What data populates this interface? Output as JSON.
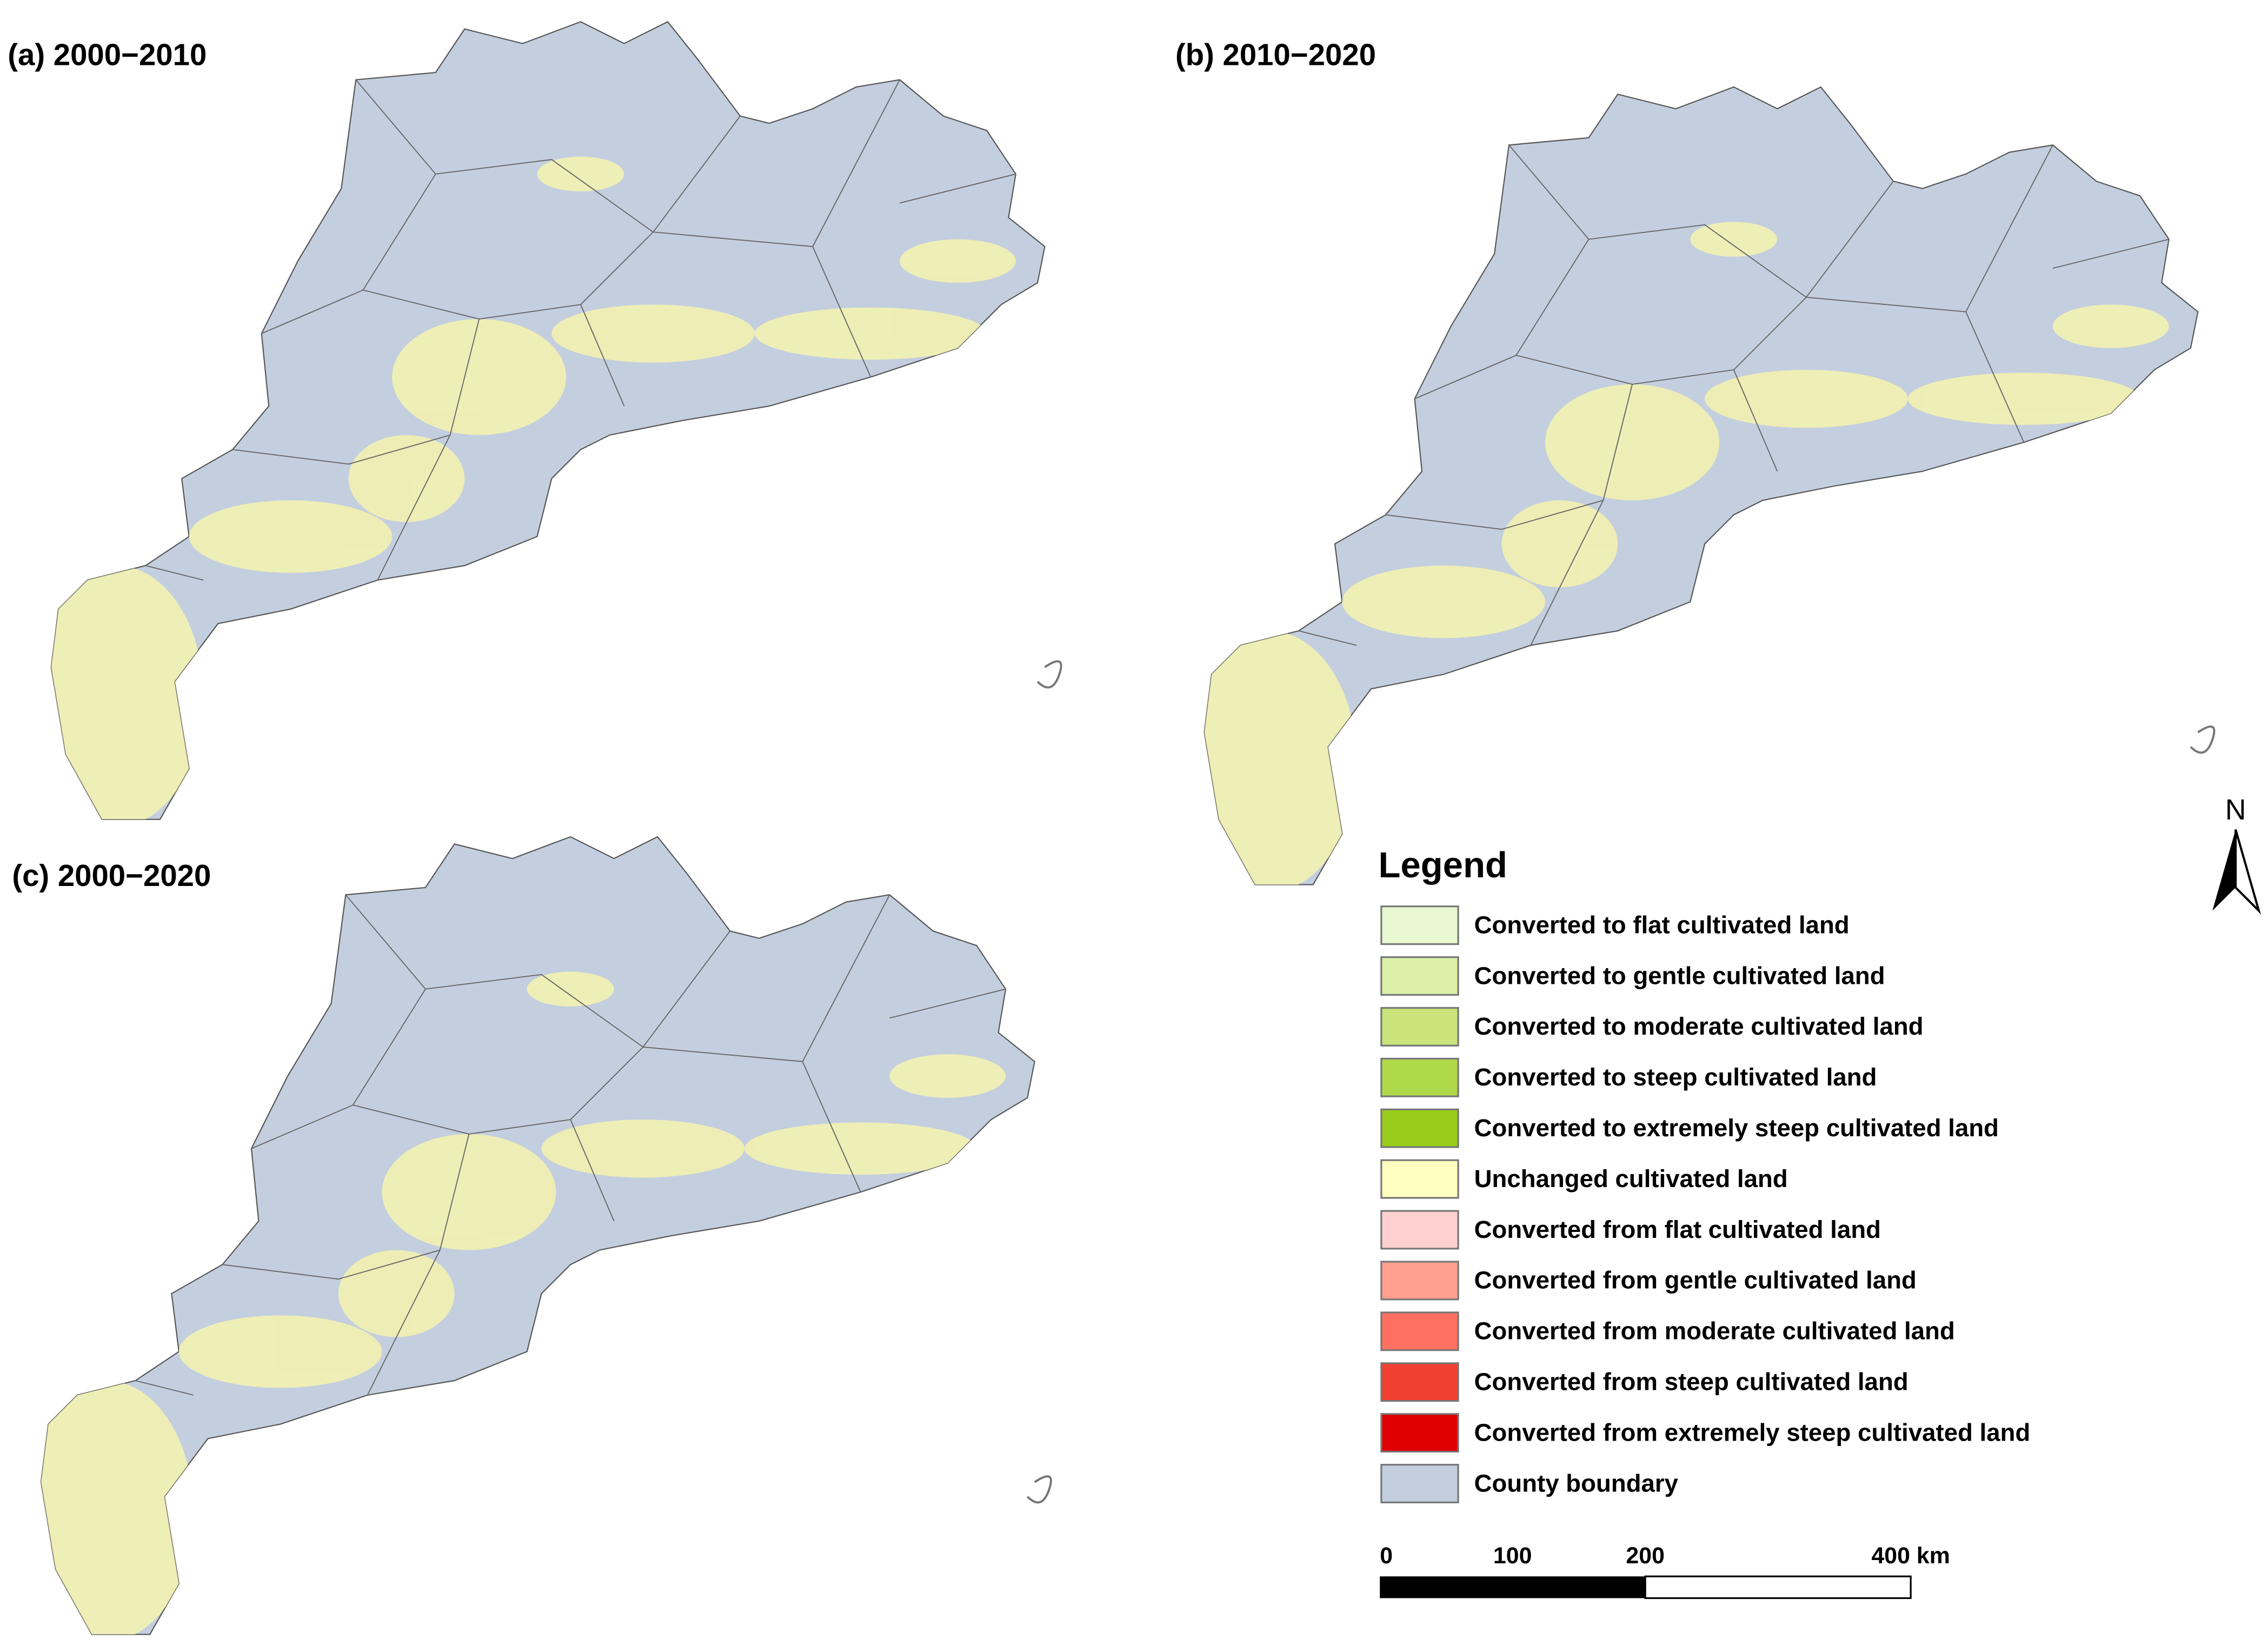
{
  "panels": [
    {
      "label": "(a) 2000−2010"
    },
    {
      "label": "(b) 2010−2020"
    },
    {
      "label": "(c) 2000−2020"
    }
  ],
  "legend": {
    "title": "Legend",
    "items": [
      {
        "label": "Converted to flat cultivated land",
        "color": "#e8f8d0"
      },
      {
        "label": "Converted to gentle cultivated land",
        "color": "#dcf0a8"
      },
      {
        "label": "Converted to moderate cultivated land",
        "color": "#c8e47a"
      },
      {
        "label": "Converted to steep cultivated land",
        "color": "#b0d94a"
      },
      {
        "label": "Converted to extremely steep cultivated land",
        "color": "#98cc1a"
      },
      {
        "label": "Unchanged cultivated land",
        "color": "#ffffc0"
      },
      {
        "label": "Converted from flat cultivated land",
        "color": "#ffd0d0"
      },
      {
        "label": "Converted from gentle cultivated land",
        "color": "#ffa090"
      },
      {
        "label": "Converted from moderate cultivated land",
        "color": "#ff7060"
      },
      {
        "label": "Converted from steep cultivated land",
        "color": "#f04030"
      },
      {
        "label": "Converted from extremely steep cultivated land",
        "color": "#e00000"
      },
      {
        "label": "County boundary",
        "color": "#c3cfdf"
      }
    ]
  },
  "scale_bar": {
    "ticks": [
      0,
      100,
      200,
      {
        "value": 400,
        "label": "400 km"
      }
    ]
  },
  "north_arrow": {
    "label": "N"
  }
}
